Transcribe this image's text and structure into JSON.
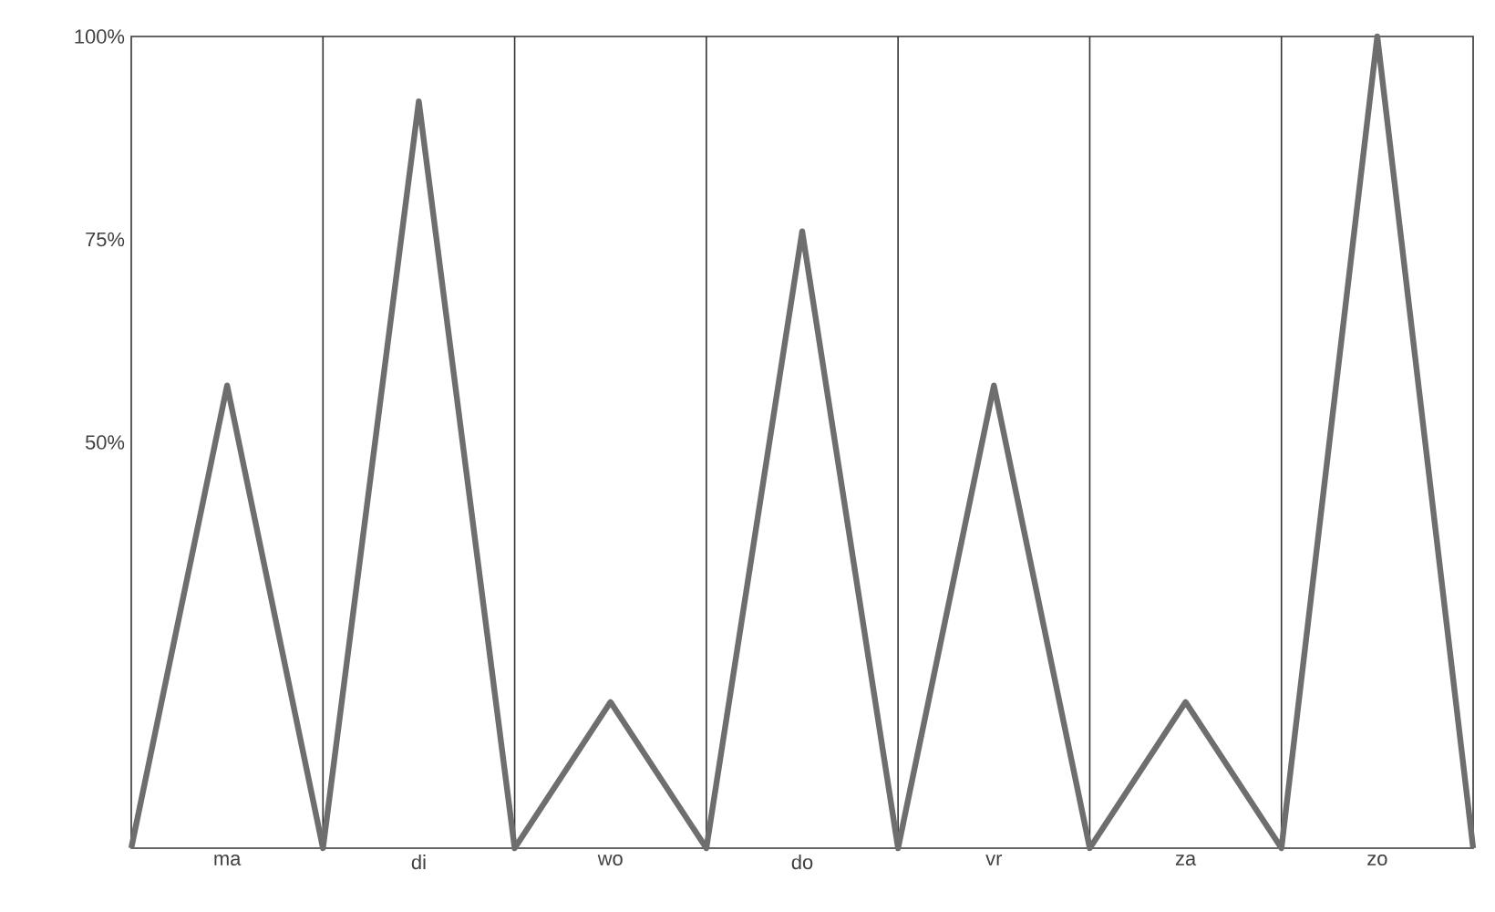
{
  "chart_data": {
    "type": "line",
    "categories": [
      null,
      "ma",
      null,
      "di",
      null,
      "wo",
      null,
      "do",
      null,
      "vr",
      null,
      "za",
      null,
      "zo",
      null
    ],
    "series": [
      {
        "color": "#6e6e6e",
        "values": [
          0,
          57,
          0,
          92,
          0,
          18,
          0,
          76,
          0,
          57,
          0,
          18,
          0,
          100,
          0
        ]
      }
    ],
    "ylim": [
      0,
      100
    ],
    "yticks": [
      {
        "value": 50,
        "label": "50%"
      },
      {
        "value": 75,
        "label": "75%"
      },
      {
        "value": 100,
        "label": "100%"
      }
    ],
    "grid": "x"
  }
}
